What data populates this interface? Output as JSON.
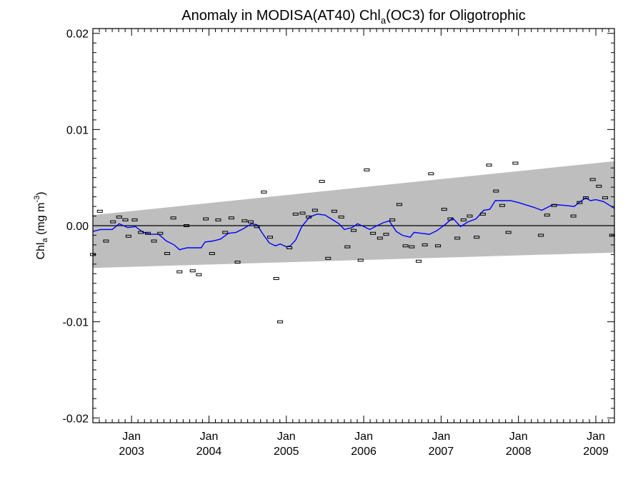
{
  "chart_data": {
    "type": "line",
    "title": {
      "prefix": "Anomaly in MODISA(AT40) Chl",
      "subscript": "a",
      "suffix": "(OC3) for Oligotrophic"
    },
    "ylabel": {
      "prefix": "Chl",
      "subscript": "a",
      "middle": " (mg m",
      "superscript": "-3",
      "suffix": ")"
    },
    "xlim": [
      2002.5,
      2009.24
    ],
    "ylim": [
      -0.0205,
      0.0205
    ],
    "y_ticks": [
      {
        "value": 0.02,
        "label": "0.02"
      },
      {
        "value": 0.01,
        "label": "0.01"
      },
      {
        "value": 0.0,
        "label": "0.00"
      },
      {
        "value": -0.01,
        "label": "-0.01"
      },
      {
        "value": -0.02,
        "label": "-0.02"
      }
    ],
    "x_ticks": [
      {
        "value": 2003.0,
        "month": "Jan",
        "year": "2003"
      },
      {
        "value": 2004.0,
        "month": "Jan",
        "year": "2004"
      },
      {
        "value": 2005.0,
        "month": "Jan",
        "year": "2005"
      },
      {
        "value": 2006.0,
        "month": "Jan",
        "year": "2006"
      },
      {
        "value": 2007.0,
        "month": "Jan",
        "year": "2007"
      },
      {
        "value": 2008.0,
        "month": "Jan",
        "year": "2008"
      },
      {
        "value": 2009.0,
        "month": "Jan",
        "year": "2009"
      }
    ],
    "zero_line": 0.0,
    "trend_band": {
      "color": "#bebebe",
      "x": [
        2002.5,
        2009.24
      ],
      "upper": [
        0.0011,
        0.0067
      ],
      "lower": [
        -0.0044,
        -0.0028
      ]
    },
    "monthly_anomalies": {
      "name": "",
      "color": "#000000",
      "points": [
        [
          2002.5,
          -0.003
        ],
        [
          2002.59,
          0.0015
        ],
        [
          2002.67,
          -0.0016
        ],
        [
          2002.76,
          0.0004
        ],
        [
          2002.84,
          0.0009
        ],
        [
          2002.92,
          0.0006
        ],
        [
          2002.96,
          -0.0011
        ],
        [
          2003.04,
          0.0006
        ],
        [
          2003.12,
          -0.0007
        ],
        [
          2003.21,
          -0.0008
        ],
        [
          2003.29,
          -0.0016
        ],
        [
          2003.37,
          -0.0008
        ],
        [
          2003.46,
          -0.0029
        ],
        [
          2003.54,
          0.0008
        ],
        [
          2003.62,
          -0.0048
        ],
        [
          2003.71,
          0.0
        ],
        [
          2003.79,
          -0.0047
        ],
        [
          2003.87,
          -0.0051
        ],
        [
          2003.96,
          0.0007
        ],
        [
          2004.04,
          -0.0029
        ],
        [
          2004.12,
          0.0006
        ],
        [
          2004.21,
          -0.0007
        ],
        [
          2004.29,
          0.0008
        ],
        [
          2004.37,
          -0.0038
        ],
        [
          2004.46,
          0.0005
        ],
        [
          2004.54,
          0.0004
        ],
        [
          2004.62,
          -0.0001
        ],
        [
          2004.71,
          0.0035
        ],
        [
          2004.79,
          -0.0012
        ],
        [
          2004.87,
          -0.0055
        ],
        [
          2004.92,
          -0.01
        ],
        [
          2005.04,
          -0.0023
        ],
        [
          2005.12,
          0.0012
        ],
        [
          2005.21,
          0.0013
        ],
        [
          2005.29,
          0.0009
        ],
        [
          2005.37,
          0.0016
        ],
        [
          2005.46,
          0.0046
        ],
        [
          2005.54,
          -0.0034
        ],
        [
          2005.62,
          0.0015
        ],
        [
          2005.71,
          0.0009
        ],
        [
          2005.79,
          -0.0022
        ],
        [
          2005.87,
          -0.0005
        ],
        [
          2005.96,
          -0.0036
        ],
        [
          2006.04,
          0.0058
        ],
        [
          2006.12,
          -0.0008
        ],
        [
          2006.21,
          -0.0013
        ],
        [
          2006.29,
          -0.0009
        ],
        [
          2006.37,
          0.0006
        ],
        [
          2006.46,
          0.0022
        ],
        [
          2006.54,
          -0.0021
        ],
        [
          2006.62,
          -0.0022
        ],
        [
          2006.71,
          -0.0037
        ],
        [
          2006.79,
          -0.002
        ],
        [
          2006.87,
          0.0054
        ],
        [
          2006.96,
          -0.0021
        ],
        [
          2007.04,
          0.0017
        ],
        [
          2007.12,
          0.0007
        ],
        [
          2007.21,
          -0.0013
        ],
        [
          2007.29,
          0.0006
        ],
        [
          2007.37,
          0.001
        ],
        [
          2007.46,
          -0.0012
        ],
        [
          2007.54,
          0.0012
        ],
        [
          2007.62,
          0.0063
        ],
        [
          2007.71,
          0.0036
        ],
        [
          2007.79,
          0.0021
        ],
        [
          2007.87,
          -0.0007
        ],
        [
          2007.96,
          0.0065
        ],
        [
          2008.29,
          -0.001
        ],
        [
          2008.37,
          0.0011
        ],
        [
          2008.46,
          0.0021
        ],
        [
          2008.71,
          0.001
        ],
        [
          2008.79,
          0.0024
        ],
        [
          2008.87,
          0.0029
        ],
        [
          2008.96,
          0.0048
        ],
        [
          2009.04,
          0.0041
        ],
        [
          2009.12,
          0.0029
        ],
        [
          2009.21,
          -0.001
        ]
      ]
    },
    "running_mean": {
      "name": "",
      "color": "#0000ff",
      "points": [
        [
          2002.5,
          -0.0006
        ],
        [
          2002.6,
          -0.0004
        ],
        [
          2002.75,
          -0.0004
        ],
        [
          2002.84,
          0.0002
        ],
        [
          2002.95,
          -0.0002
        ],
        [
          2003.05,
          -0.0001
        ],
        [
          2003.15,
          -0.0007
        ],
        [
          2003.25,
          -0.0009
        ],
        [
          2003.35,
          -0.0009
        ],
        [
          2003.45,
          -0.0016
        ],
        [
          2003.55,
          -0.002
        ],
        [
          2003.62,
          -0.0025
        ],
        [
          2003.72,
          -0.0023
        ],
        [
          2003.8,
          -0.0023
        ],
        [
          2003.9,
          -0.0023
        ],
        [
          2003.95,
          -0.0017
        ],
        [
          2004.05,
          -0.0016
        ],
        [
          2004.15,
          -0.0014
        ],
        [
          2004.25,
          -0.0008
        ],
        [
          2004.35,
          -0.0007
        ],
        [
          2004.45,
          -0.0003
        ],
        [
          2004.55,
          0.0002
        ],
        [
          2004.62,
          0.0001
        ],
        [
          2004.7,
          -0.0009
        ],
        [
          2004.78,
          -0.0018
        ],
        [
          2004.86,
          -0.0021
        ],
        [
          2004.92,
          -0.0019
        ],
        [
          2005.0,
          -0.0022
        ],
        [
          2005.05,
          -0.0021
        ],
        [
          2005.12,
          -0.0015
        ],
        [
          2005.2,
          -0.0001
        ],
        [
          2005.3,
          0.0009
        ],
        [
          2005.4,
          0.0012
        ],
        [
          2005.5,
          0.0011
        ],
        [
          2005.6,
          0.0006
        ],
        [
          2005.68,
          0.0002
        ],
        [
          2005.75,
          -0.0004
        ],
        [
          2005.85,
          -0.0002
        ],
        [
          2005.92,
          0.0002
        ],
        [
          2006.0,
          -0.0001
        ],
        [
          2006.08,
          -0.0004
        ],
        [
          2006.15,
          -0.0001
        ],
        [
          2006.25,
          0.0003
        ],
        [
          2006.33,
          0.0005
        ],
        [
          2006.42,
          -0.0006
        ],
        [
          2006.5,
          -0.001
        ],
        [
          2006.6,
          -0.0012
        ],
        [
          2006.65,
          -0.0007
        ],
        [
          2006.75,
          -0.0008
        ],
        [
          2006.85,
          -0.0009
        ],
        [
          2006.95,
          -0.0005
        ],
        [
          2007.05,
          0.0001
        ],
        [
          2007.15,
          0.0008
        ],
        [
          2007.25,
          -0.0001
        ],
        [
          2007.35,
          0.0004
        ],
        [
          2007.45,
          0.0007
        ],
        [
          2007.55,
          0.0016
        ],
        [
          2007.63,
          0.0017
        ],
        [
          2007.7,
          0.0026
        ],
        [
          2007.8,
          0.0026
        ],
        [
          2007.9,
          0.0026
        ],
        [
          2008.0,
          0.0024
        ],
        [
          2008.2,
          0.0019
        ],
        [
          2008.3,
          0.0016
        ],
        [
          2008.45,
          0.0022
        ],
        [
          2008.6,
          0.0021
        ],
        [
          2008.72,
          0.002
        ],
        [
          2008.8,
          0.0025
        ],
        [
          2008.87,
          0.0029
        ],
        [
          2008.93,
          0.0026
        ],
        [
          2009.0,
          0.0027
        ],
        [
          2009.1,
          0.0025
        ],
        [
          2009.24,
          0.0018
        ]
      ]
    }
  }
}
